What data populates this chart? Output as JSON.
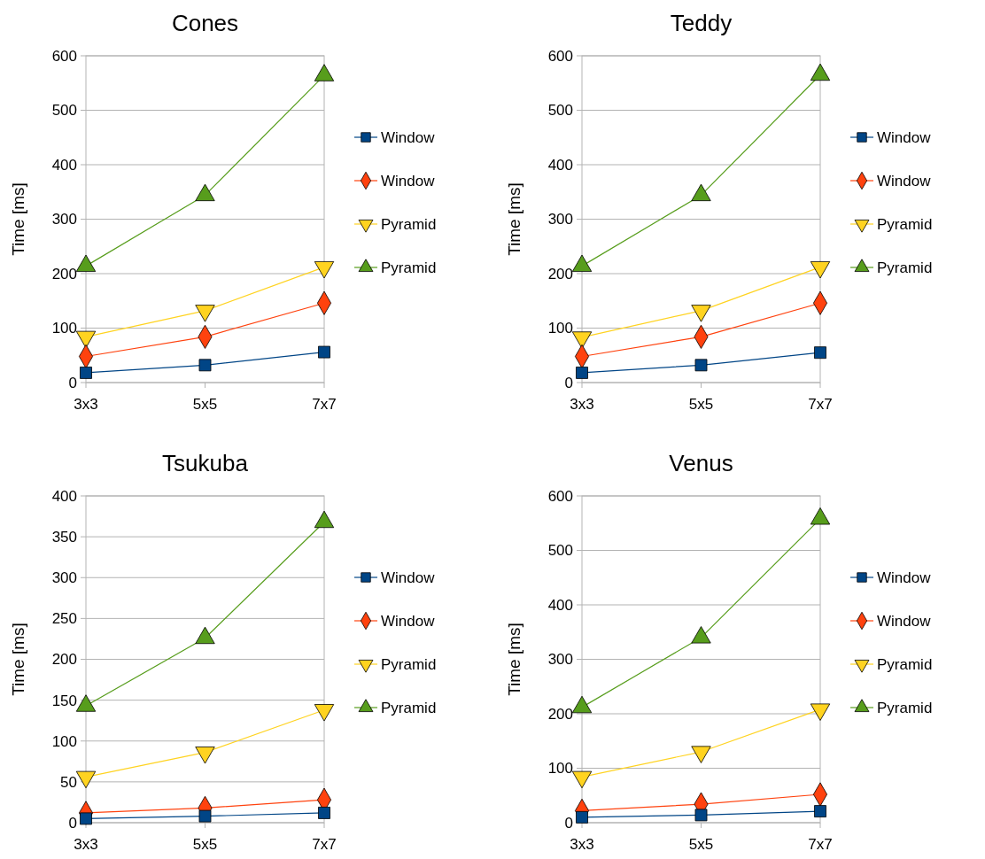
{
  "chart_data": [
    {
      "type": "line",
      "title": "Cones",
      "ylabel": "Time [ms]",
      "categories": [
        "3x3",
        "5x5",
        "7x7"
      ],
      "ylim": [
        0,
        600
      ],
      "yticks": [
        0,
        100,
        200,
        300,
        400,
        500,
        600
      ],
      "grid": "y",
      "legend": "right",
      "series": [
        {
          "name": "Window",
          "color": "#004586",
          "marker": "square",
          "values": [
            18,
            32,
            56
          ]
        },
        {
          "name": "Window",
          "color": "#ff420e",
          "marker": "diamond",
          "values": [
            48,
            84,
            146
          ]
        },
        {
          "name": "Pyramid",
          "color": "#ffd320",
          "marker": "triangle-down",
          "values": [
            84,
            132,
            212
          ]
        },
        {
          "name": "Pyramid",
          "color": "#579d1c",
          "marker": "triangle",
          "values": [
            214,
            344,
            564
          ]
        }
      ]
    },
    {
      "type": "line",
      "title": "Teddy",
      "ylabel": "Time [ms]",
      "categories": [
        "3x3",
        "5x5",
        "7x7"
      ],
      "ylim": [
        0,
        600
      ],
      "yticks": [
        0,
        100,
        200,
        300,
        400,
        500,
        600
      ],
      "grid": "y",
      "legend": "right",
      "series": [
        {
          "name": "Window",
          "color": "#004586",
          "marker": "square",
          "values": [
            18,
            32,
            55
          ]
        },
        {
          "name": "Window",
          "color": "#ff420e",
          "marker": "diamond",
          "values": [
            48,
            84,
            146
          ]
        },
        {
          "name": "Pyramid",
          "color": "#ffd320",
          "marker": "triangle-down",
          "values": [
            83,
            132,
            212
          ]
        },
        {
          "name": "Pyramid",
          "color": "#579d1c",
          "marker": "triangle",
          "values": [
            214,
            344,
            565
          ]
        }
      ]
    },
    {
      "type": "line",
      "title": "Tsukuba",
      "ylabel": "Time [ms]",
      "categories": [
        "3x3",
        "5x5",
        "7x7"
      ],
      "ylim": [
        0,
        400
      ],
      "yticks": [
        0,
        50,
        100,
        150,
        200,
        250,
        300,
        350,
        400
      ],
      "grid": "y",
      "legend": "right",
      "series": [
        {
          "name": "Window",
          "color": "#004586",
          "marker": "square",
          "values": [
            5,
            8,
            12
          ]
        },
        {
          "name": "Window",
          "color": "#ff420e",
          "marker": "diamond",
          "values": [
            12,
            18,
            28
          ]
        },
        {
          "name": "Pyramid",
          "color": "#ffd320",
          "marker": "triangle-down",
          "values": [
            56,
            86,
            138
          ]
        },
        {
          "name": "Pyramid",
          "color": "#579d1c",
          "marker": "triangle",
          "values": [
            143,
            226,
            368
          ]
        }
      ]
    },
    {
      "type": "line",
      "title": "Venus",
      "ylabel": "Time [ms]",
      "categories": [
        "3x3",
        "5x5",
        "7x7"
      ],
      "ylim": [
        0,
        600
      ],
      "yticks": [
        0,
        100,
        200,
        300,
        400,
        500,
        600
      ],
      "grid": "y",
      "legend": "right",
      "series": [
        {
          "name": "Window",
          "color": "#004586",
          "marker": "square",
          "values": [
            10,
            14,
            21
          ]
        },
        {
          "name": "Window",
          "color": "#ff420e",
          "marker": "diamond",
          "values": [
            22,
            34,
            52
          ]
        },
        {
          "name": "Pyramid",
          "color": "#ffd320",
          "marker": "triangle-down",
          "values": [
            84,
            130,
            208
          ]
        },
        {
          "name": "Pyramid",
          "color": "#579d1c",
          "marker": "triangle",
          "values": [
            212,
            340,
            558
          ]
        }
      ]
    }
  ]
}
